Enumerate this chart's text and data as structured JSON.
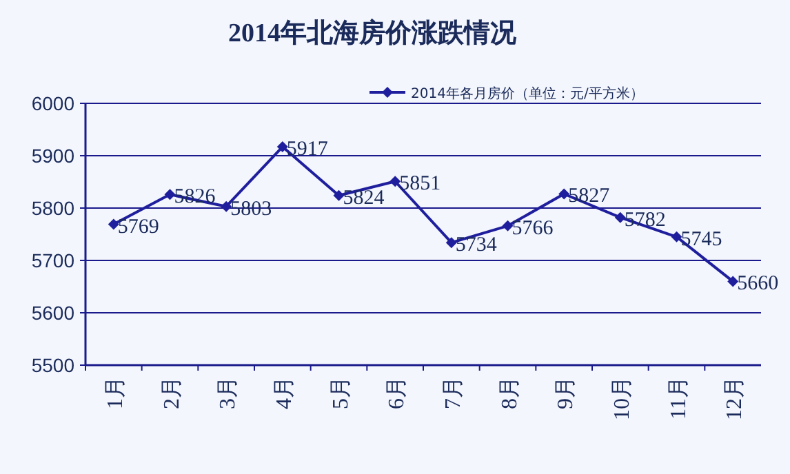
{
  "chart_data": {
    "type": "line",
    "title": "2014年北海房价涨跌情况",
    "categories": [
      "1月",
      "2月",
      "3月",
      "4月",
      "5月",
      "6月",
      "7月",
      "8月",
      "9月",
      "10月",
      "11月",
      "12月"
    ],
    "series": [
      {
        "name": "2014年各月房价（单位：元/平方米）",
        "color": "#1f1f9e",
        "values": [
          5769,
          5826,
          5803,
          5917,
          5824,
          5851,
          5734,
          5766,
          5827,
          5782,
          5745,
          5660
        ]
      }
    ],
    "ylim": [
      5500,
      6000
    ],
    "yticks": [
      5500,
      5600,
      5700,
      5800,
      5900,
      6000
    ],
    "grid": "y",
    "legend": "top right",
    "marker": "diamond",
    "data_labels": true
  }
}
